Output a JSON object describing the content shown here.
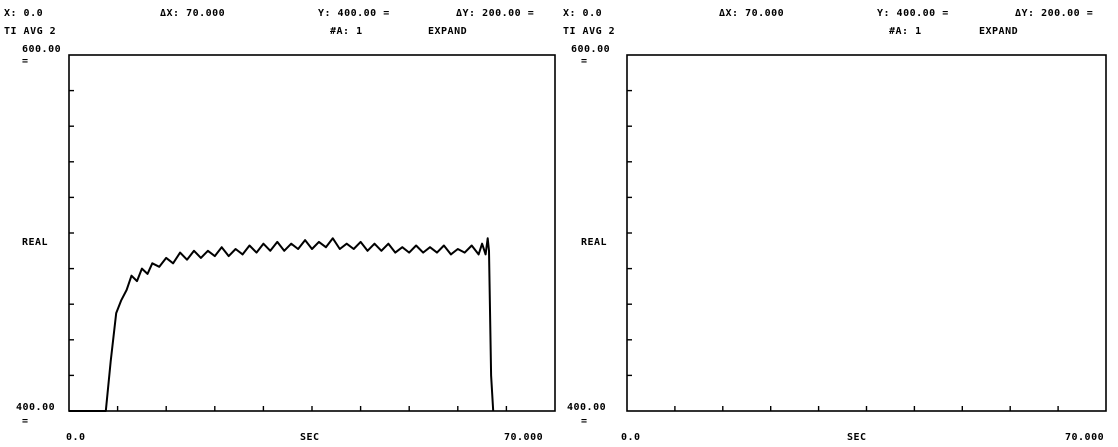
{
  "panels": [
    {
      "header": {
        "x_readout": "X: 0.0",
        "dx_readout": "ΔX: 70.000",
        "y_readout": "Y: 400.00 =",
        "dy_readout": "ΔY: 200.00 =",
        "mode": "TI AVG 2",
        "avg_count": "#A: 1",
        "expand": "EXPAND"
      },
      "axes": {
        "ymax_label": "600.00",
        "ymax_unit": "=",
        "ymin_label": "400.00",
        "ymin_unit": "=",
        "ylabel": "REAL",
        "xmin_label": "0.0",
        "xlabel": "SEC",
        "xmax_label": "70.000"
      }
    },
    {
      "header": {
        "x_readout": "X: 0.0",
        "dx_readout": "ΔX: 70.000",
        "y_readout": "Y: 400.00 =",
        "dy_readout": "ΔY: 200.00 =",
        "mode": "TI AVG 2",
        "avg_count": "#A: 1",
        "expand": "EXPAND"
      },
      "axes": {
        "ymax_label": "600.00",
        "ymax_unit": "=",
        "ymin_label": "400.00",
        "ymin_unit": "=",
        "ylabel": "REAL",
        "xmin_label": "0.0",
        "xlabel": "SEC",
        "xmax_label": "70.000"
      }
    }
  ],
  "chart_data": [
    {
      "type": "line",
      "xlabel": "SEC",
      "ylabel": "REAL",
      "xlim": [
        0,
        70
      ],
      "ylim": [
        400,
        600
      ],
      "grid": false,
      "series": [
        {
          "x": [
            0,
            5.3,
            6.0,
            6.8,
            7.5,
            8.3,
            9.0,
            9.8,
            10.5,
            11.3,
            12.0,
            13.0,
            14.0,
            15.0,
            16.0,
            17.0,
            18.0,
            19.0,
            20.0,
            21.0,
            22.0,
            23.0,
            24.0,
            25.0,
            26.0,
            27.0,
            28.0,
            29.0,
            30.0,
            31.0,
            32.0,
            33.0,
            34.0,
            35.0,
            36.0,
            37.0,
            38.0,
            39.0,
            40.0,
            41.0,
            42.0,
            43.0,
            44.0,
            45.0,
            46.0,
            47.0,
            48.0,
            49.0,
            50.0,
            51.0,
            52.0,
            53.0,
            54.0,
            55.0,
            56.0,
            57.0,
            58.0,
            59.0,
            59.5,
            60.0,
            60.3,
            60.5,
            60.8,
            61.1
          ],
          "y": [
            400,
            400,
            428,
            455,
            462,
            468,
            476,
            473,
            480,
            477,
            483,
            481,
            486,
            483,
            489,
            485,
            490,
            486,
            490,
            487,
            492,
            487,
            491,
            488,
            493,
            489,
            494,
            490,
            495,
            490,
            494,
            491,
            496,
            491,
            495,
            492,
            497,
            491,
            494,
            491,
            495,
            490,
            494,
            490,
            494,
            489,
            492,
            489,
            493,
            489,
            492,
            489,
            493,
            488,
            491,
            489,
            493,
            488,
            494,
            488,
            497,
            490,
            420,
            400
          ]
        }
      ]
    },
    {
      "type": "line",
      "xlabel": "SEC",
      "ylabel": "REAL",
      "xlim": [
        0,
        70
      ],
      "ylim": [
        400,
        600
      ],
      "grid": false,
      "series": []
    }
  ]
}
